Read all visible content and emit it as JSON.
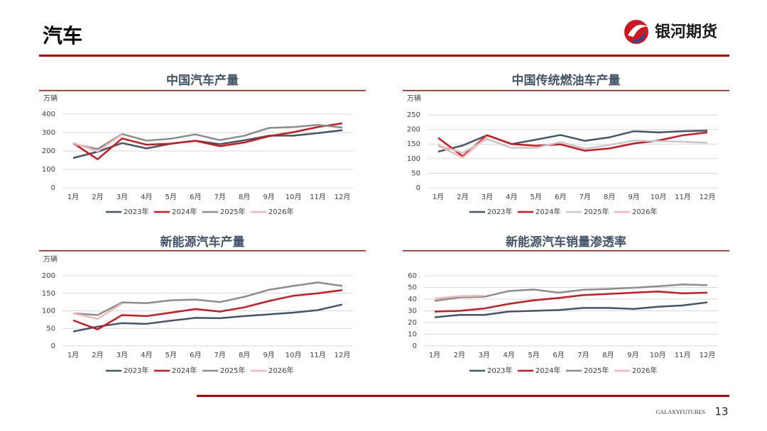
{
  "header": {
    "title": "汽车",
    "brand": "银河期货"
  },
  "footer": {
    "brand": "GALAXYFUTURES",
    "page": "13"
  },
  "chart_data": [
    {
      "type": "line",
      "title": "中国汽车产量",
      "y_label": "万辆",
      "categories": [
        "1月",
        "2月",
        "3月",
        "4月",
        "5月",
        "6月",
        "7月",
        "8月",
        "9月",
        "10月",
        "11月",
        "12月"
      ],
      "ylim": [
        0,
        400
      ],
      "yticks": [
        0,
        100,
        200,
        300,
        400
      ],
      "grid": true,
      "series": [
        {
          "name": "2023年",
          "color": "#44546a",
          "values": [
            162,
            196,
            243,
            214,
            240,
            256,
            237,
            258,
            283,
            283,
            297,
            313
          ]
        },
        {
          "name": "2024年",
          "color": "#d0161f",
          "values": [
            243,
            155,
            268,
            234,
            240,
            255,
            226,
            246,
            280,
            302,
            330,
            350
          ]
        },
        {
          "name": "2025年",
          "color": "#8c8c8c",
          "values": [
            238,
            211,
            292,
            256,
            267,
            290,
            259,
            283,
            325,
            330,
            342,
            327
          ]
        },
        {
          "name": "2026年",
          "color": "#f4b8b8",
          "values": [
            244,
            198,
            290,
            null,
            null,
            null,
            null,
            null,
            null,
            null,
            null,
            null
          ]
        }
      ]
    },
    {
      "type": "line",
      "title": "中国传统燃油车产量",
      "y_label": "万辆",
      "categories": [
        "1月",
        "2月",
        "3月",
        "4月",
        "5月",
        "6月",
        "7月",
        "8月",
        "9月",
        "10月",
        "11月",
        "12月"
      ],
      "ylim": [
        0,
        250
      ],
      "yticks": [
        0,
        50,
        100,
        150,
        200,
        250
      ],
      "grid": true,
      "series": [
        {
          "name": "2023年",
          "color": "#44546a",
          "values": [
            124,
            145,
            180,
            150,
            165,
            181,
            161,
            173,
            194,
            190,
            194,
            196
          ]
        },
        {
          "name": "2024年",
          "color": "#d0161f",
          "values": [
            171,
            108,
            180,
            150,
            144,
            149,
            127,
            135,
            152,
            162,
            180,
            190
          ]
        },
        {
          "name": "2025年",
          "color": "#c8c8c8",
          "values": [
            146,
            120,
            167,
            137,
            137,
            157,
            134,
            147,
            162,
            160,
            158,
            154
          ]
        },
        {
          "name": "2026年",
          "color": "#f4b8b8",
          "values": [
            144,
            104,
            175,
            null,
            null,
            null,
            null,
            null,
            null,
            null,
            null,
            null
          ]
        }
      ]
    },
    {
      "type": "line",
      "title": "新能源汽车产量",
      "y_label": "万辆",
      "categories": [
        "1月",
        "2月",
        "3月",
        "4月",
        "5月",
        "6月",
        "7月",
        "8月",
        "9月",
        "10月",
        "11月",
        "12月"
      ],
      "ylim": [
        0,
        200
      ],
      "yticks": [
        0,
        50,
        100,
        150,
        200
      ],
      "grid": true,
      "series": [
        {
          "name": "2023年",
          "color": "#44546a",
          "values": [
            41,
            55,
            65,
            63,
            72,
            80,
            79,
            85,
            90,
            95,
            102,
            118
          ]
        },
        {
          "name": "2024年",
          "color": "#d0161f",
          "values": [
            73,
            47,
            88,
            85,
            95,
            105,
            98,
            110,
            128,
            143,
            150,
            159
          ]
        },
        {
          "name": "2025年",
          "color": "#8c8c8c",
          "values": [
            93,
            88,
            124,
            122,
            130,
            132,
            125,
            140,
            160,
            171,
            181,
            171
          ]
        },
        {
          "name": "2026年",
          "color": "#f4b8b8",
          "values": [
            93,
            77,
            121,
            null,
            null,
            null,
            null,
            null,
            null,
            null,
            null,
            null
          ]
        }
      ]
    },
    {
      "type": "line",
      "title": "新能源汽车销量渗透率",
      "categories": [
        "1月",
        "2月",
        "3月",
        "4月",
        "5月",
        "6月",
        "7月",
        "8月",
        "9月",
        "10月",
        "11月",
        "12月"
      ],
      "ylim": [
        0,
        60
      ],
      "yticks": [
        0,
        10,
        20,
        30,
        40,
        50,
        60
      ],
      "grid": true,
      "series": [
        {
          "name": "2023年",
          "color": "#44546a",
          "values": [
            24.5,
            26.5,
            26.5,
            29.4,
            30,
            30.7,
            32.5,
            32.5,
            31.6,
            33.5,
            34.6,
            37.3
          ]
        },
        {
          "name": "2024年",
          "color": "#d0161f",
          "values": [
            29.4,
            30,
            32,
            36,
            39,
            41,
            43.5,
            44.5,
            45.5,
            46.5,
            45,
            45.5
          ]
        },
        {
          "name": "2025年",
          "color": "#8c8c8c",
          "values": [
            38.5,
            41.5,
            42,
            47,
            48.2,
            45.5,
            48,
            48.7,
            49.7,
            51,
            52.6,
            52
          ]
        },
        {
          "name": "2026年",
          "color": "#f4b8b8",
          "values": [
            40.5,
            42.5,
            43,
            null,
            null,
            null,
            null,
            null,
            null,
            null,
            null,
            null
          ]
        }
      ]
    }
  ]
}
